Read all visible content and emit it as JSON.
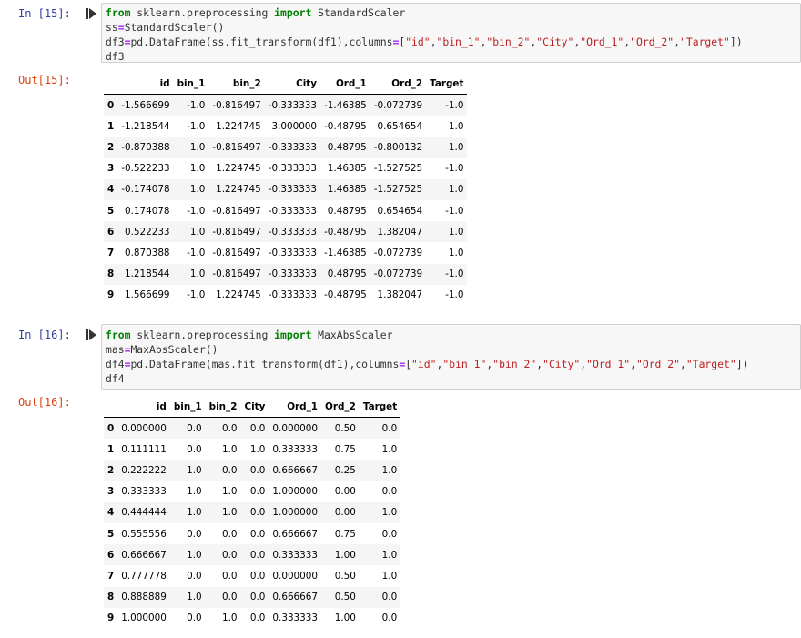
{
  "cells": [
    {
      "in_prompt": "In [15]:",
      "out_prompt": "Out[15]:",
      "code": [
        [
          {
            "t": "kw",
            "v": "from"
          },
          {
            "t": "",
            "v": " sklearn.preprocessing "
          },
          {
            "t": "kw",
            "v": "import"
          },
          {
            "t": "",
            "v": " StandardScaler"
          }
        ],
        [
          {
            "t": "",
            "v": "ss"
          },
          {
            "t": "op",
            "v": "="
          },
          {
            "t": "",
            "v": "StandardScaler()"
          }
        ],
        [
          {
            "t": "",
            "v": "df3"
          },
          {
            "t": "op",
            "v": "="
          },
          {
            "t": "",
            "v": "pd.DataFrame(ss.fit_transform(df1),columns"
          },
          {
            "t": "op",
            "v": "="
          },
          {
            "t": "",
            "v": "["
          },
          {
            "t": "str",
            "v": "\"id\""
          },
          {
            "t": "",
            "v": ","
          },
          {
            "t": "str",
            "v": "\"bin_1\""
          },
          {
            "t": "",
            "v": ","
          },
          {
            "t": "str",
            "v": "\"bin_2\""
          },
          {
            "t": "",
            "v": ","
          },
          {
            "t": "str",
            "v": "\"City\""
          },
          {
            "t": "",
            "v": ","
          },
          {
            "t": "str",
            "v": "\"Ord_1\""
          },
          {
            "t": "",
            "v": ","
          },
          {
            "t": "str",
            "v": "\"Ord_2\""
          },
          {
            "t": "",
            "v": ","
          },
          {
            "t": "str",
            "v": "\"Target\""
          },
          {
            "t": "",
            "v": "])"
          }
        ],
        [
          {
            "t": "",
            "v": "df3"
          }
        ]
      ],
      "table": {
        "columns": [
          "id",
          "bin_1",
          "bin_2",
          "City",
          "Ord_1",
          "Ord_2",
          "Target"
        ],
        "rows": [
          {
            "index": "0",
            "values": [
              "-1.566699",
              "-1.0",
              "-0.816497",
              "-0.333333",
              "-1.46385",
              "-0.072739",
              "-1.0"
            ]
          },
          {
            "index": "1",
            "values": [
              "-1.218544",
              "-1.0",
              "1.224745",
              "3.000000",
              "-0.48795",
              "0.654654",
              "1.0"
            ]
          },
          {
            "index": "2",
            "values": [
              "-0.870388",
              "1.0",
              "-0.816497",
              "-0.333333",
              "0.48795",
              "-0.800132",
              "1.0"
            ]
          },
          {
            "index": "3",
            "values": [
              "-0.522233",
              "1.0",
              "1.224745",
              "-0.333333",
              "1.46385",
              "-1.527525",
              "-1.0"
            ]
          },
          {
            "index": "4",
            "values": [
              "-0.174078",
              "1.0",
              "1.224745",
              "-0.333333",
              "1.46385",
              "-1.527525",
              "1.0"
            ]
          },
          {
            "index": "5",
            "values": [
              "0.174078",
              "-1.0",
              "-0.816497",
              "-0.333333",
              "0.48795",
              "0.654654",
              "-1.0"
            ]
          },
          {
            "index": "6",
            "values": [
              "0.522233",
              "1.0",
              "-0.816497",
              "-0.333333",
              "-0.48795",
              "1.382047",
              "1.0"
            ]
          },
          {
            "index": "7",
            "values": [
              "0.870388",
              "-1.0",
              "-0.816497",
              "-0.333333",
              "-1.46385",
              "-0.072739",
              "1.0"
            ]
          },
          {
            "index": "8",
            "values": [
              "1.218544",
              "1.0",
              "-0.816497",
              "-0.333333",
              "0.48795",
              "-0.072739",
              "-1.0"
            ]
          },
          {
            "index": "9",
            "values": [
              "1.566699",
              "-1.0",
              "1.224745",
              "-0.333333",
              "-0.48795",
              "1.382047",
              "-1.0"
            ]
          }
        ]
      }
    },
    {
      "in_prompt": "In [16]:",
      "out_prompt": "Out[16]:",
      "code": [
        [
          {
            "t": "kw",
            "v": "from"
          },
          {
            "t": "",
            "v": " sklearn.preprocessing "
          },
          {
            "t": "kw",
            "v": "import"
          },
          {
            "t": "",
            "v": " MaxAbsScaler"
          }
        ],
        [
          {
            "t": "",
            "v": "mas"
          },
          {
            "t": "op",
            "v": "="
          },
          {
            "t": "",
            "v": "MaxAbsScaler()"
          }
        ],
        [
          {
            "t": "",
            "v": "df4"
          },
          {
            "t": "op",
            "v": "="
          },
          {
            "t": "",
            "v": "pd.DataFrame(mas.fit_transform(df1),columns"
          },
          {
            "t": "op",
            "v": "="
          },
          {
            "t": "",
            "v": "["
          },
          {
            "t": "str",
            "v": "\"id\""
          },
          {
            "t": "",
            "v": ","
          },
          {
            "t": "str",
            "v": "\"bin_1\""
          },
          {
            "t": "",
            "v": ","
          },
          {
            "t": "str",
            "v": "\"bin_2\""
          },
          {
            "t": "",
            "v": ","
          },
          {
            "t": "str",
            "v": "\"City\""
          },
          {
            "t": "",
            "v": ","
          },
          {
            "t": "str",
            "v": "\"Ord_1\""
          },
          {
            "t": "",
            "v": ","
          },
          {
            "t": "str",
            "v": "\"Ord_2\""
          },
          {
            "t": "",
            "v": ","
          },
          {
            "t": "str",
            "v": "\"Target\""
          },
          {
            "t": "",
            "v": "])"
          }
        ],
        [
          {
            "t": "",
            "v": "df4"
          }
        ]
      ],
      "table": {
        "columns": [
          "id",
          "bin_1",
          "bin_2",
          "City",
          "Ord_1",
          "Ord_2",
          "Target"
        ],
        "rows": [
          {
            "index": "0",
            "values": [
              "0.000000",
              "0.0",
              "0.0",
              "0.0",
              "0.000000",
              "0.50",
              "0.0"
            ]
          },
          {
            "index": "1",
            "values": [
              "0.111111",
              "0.0",
              "1.0",
              "1.0",
              "0.333333",
              "0.75",
              "1.0"
            ]
          },
          {
            "index": "2",
            "values": [
              "0.222222",
              "1.0",
              "0.0",
              "0.0",
              "0.666667",
              "0.25",
              "1.0"
            ]
          },
          {
            "index": "3",
            "values": [
              "0.333333",
              "1.0",
              "1.0",
              "0.0",
              "1.000000",
              "0.00",
              "0.0"
            ]
          },
          {
            "index": "4",
            "values": [
              "0.444444",
              "1.0",
              "1.0",
              "0.0",
              "1.000000",
              "0.00",
              "1.0"
            ]
          },
          {
            "index": "5",
            "values": [
              "0.555556",
              "0.0",
              "0.0",
              "0.0",
              "0.666667",
              "0.75",
              "0.0"
            ]
          },
          {
            "index": "6",
            "values": [
              "0.666667",
              "1.0",
              "0.0",
              "0.0",
              "0.333333",
              "1.00",
              "1.0"
            ]
          },
          {
            "index": "7",
            "values": [
              "0.777778",
              "0.0",
              "0.0",
              "0.0",
              "0.000000",
              "0.50",
              "1.0"
            ]
          },
          {
            "index": "8",
            "values": [
              "0.888889",
              "1.0",
              "0.0",
              "0.0",
              "0.666667",
              "0.50",
              "0.0"
            ]
          },
          {
            "index": "9",
            "values": [
              "1.000000",
              "0.0",
              "1.0",
              "0.0",
              "0.333333",
              "1.00",
              "0.0"
            ]
          }
        ]
      }
    }
  ]
}
